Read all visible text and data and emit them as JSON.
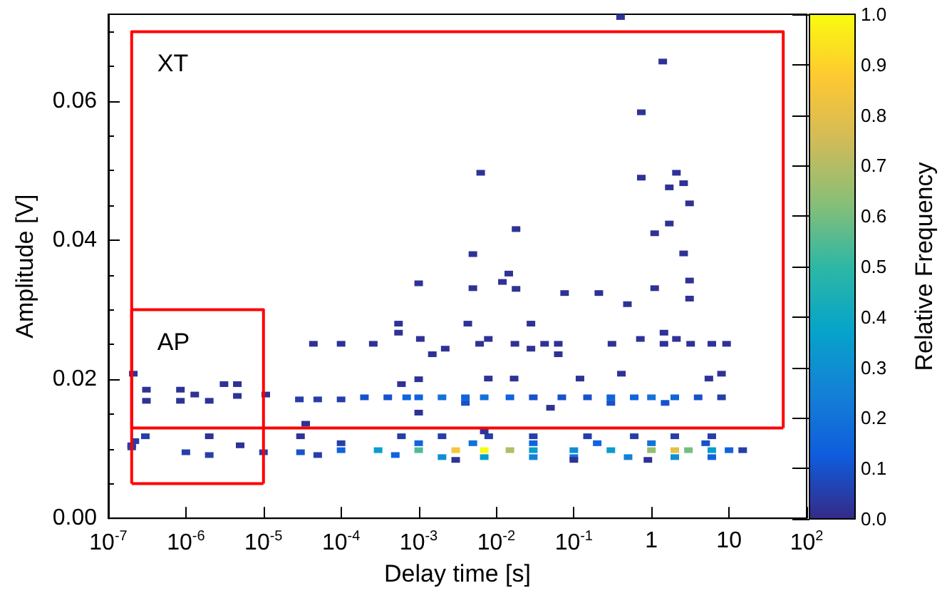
{
  "chart_data": {
    "type": "scatter",
    "xlabel": "Delay time [s]",
    "ylabel": "Amplitude [V]",
    "clabel": "Relative Frequency",
    "log": "x",
    "grid": false,
    "marker": "square",
    "xlim": [
      1e-07,
      100
    ],
    "ylim": [
      0,
      0.0725
    ],
    "xticks": [
      {
        "value": 1e-07,
        "label": "10$^{-7}$"
      },
      {
        "value": 1e-06,
        "label": "10$^{-6}$"
      },
      {
        "value": 1e-05,
        "label": "10$^{-5}$"
      },
      {
        "value": 0.0001,
        "label": "10$^{-4}$"
      },
      {
        "value": 0.001,
        "label": "10$^{-3}$"
      },
      {
        "value": 0.01,
        "label": "10$^{-2}$"
      },
      {
        "value": 0.1,
        "label": "10$^{-1}$"
      },
      1,
      10,
      {
        "value": 100,
        "label": "10$^{2}$"
      }
    ],
    "yticks": [
      {
        "value": 0,
        "label": "0.00"
      },
      {
        "value": 0.02,
        "label": "0.02"
      },
      {
        "value": 0.04,
        "label": "0.04"
      },
      {
        "value": 0.06,
        "label": "0.06"
      }
    ],
    "clim": [
      0,
      1
    ],
    "cticks": [
      {
        "value": 0,
        "label": "0.0"
      },
      {
        "value": 0.1,
        "label": "0.1"
      },
      {
        "value": 0.2,
        "label": "0.2"
      },
      {
        "value": 0.3,
        "label": "0.3"
      },
      {
        "value": 0.4,
        "label": "0.4"
      },
      {
        "value": 0.5,
        "label": "0.5"
      },
      {
        "value": 0.6,
        "label": "0.6"
      },
      {
        "value": 0.7,
        "label": "0.7"
      },
      {
        "value": 0.8,
        "label": "0.8"
      },
      {
        "value": 0.9,
        "label": "0.9"
      },
      {
        "value": 1,
        "label": "1.0"
      }
    ],
    "annotations": [
      "XT",
      "AP"
    ],
    "series": [
      {
        "x": [
          0.4,
          1.4,
          0.74,
          0.0063,
          0.74,
          2.1,
          2.6,
          1.7,
          3.1,
          0.018,
          1.7,
          1.1,
          2.6,
          0.005,
          0.0145,
          0.012,
          3.1,
          0.001,
          0.005,
          0.018,
          0.076,
          0.21,
          1.1,
          3.1,
          0.49,
          0.00055,
          0.0043,
          0.028,
          0.00055,
          0.00105,
          1.45,
          4.4e-05,
          0.0001,
          0.00026,
          0.0015,
          0.0022,
          0.0061,
          0.0079,
          0.0174,
          0.042,
          0.063,
          0.31,
          0.72,
          1.45,
          2.1,
          3.2,
          6,
          9.3,
          0.028,
          0.063,
          0.001,
          0.0006,
          0.41,
          0.017,
          0.0079,
          0.12,
          5.5,
          8,
          2.1e-07,
          3.1e-07,
          3.1e-07,
          8.5e-07,
          8.5e-07,
          1.3e-06,
          2e-06,
          3.1e-06,
          4.6e-06,
          4.6e-06,
          1.07e-05,
          2.9e-05,
          5e-05,
          0.0001,
          0.0002,
          0.0004,
          0.0007,
          0.001,
          0.002,
          0.004,
          0.007,
          0.015,
          0.03,
          0.07,
          0.15,
          0.3,
          0.6,
          1,
          2,
          4,
          8,
          0.001,
          3.5e-05,
          0.004,
          0.3,
          1.5,
          0.05,
          2.2e-07,
          3e-07,
          2e-06,
          3e-05,
          0.0006,
          0.002,
          0.008,
          0.03,
          0.15,
          0.6,
          2,
          6,
          0.007,
          2e-07,
          5e-06,
          0.0001,
          0.001,
          0.005,
          0.03,
          0.2,
          1,
          5,
          2e-06,
          5e-05,
          0.0005,
          0.002,
          0.007,
          0.03,
          0.1,
          0.5,
          2,
          6,
          0.003,
          0.1,
          0.9,
          2e-07,
          1e-06,
          1e-05,
          3e-05,
          0.0001,
          0.0003,
          0.001,
          0.003,
          0.007,
          0.015,
          0.03,
          0.1,
          0.3,
          1,
          2,
          3,
          6,
          10,
          15
        ],
        "values": [
          0.0721,
          0.0657,
          0.0584,
          0.0497,
          0.049,
          0.0497,
          0.0482,
          0.0476,
          0.0453,
          0.0416,
          0.0424,
          0.041,
          0.0381,
          0.038,
          0.0352,
          0.034,
          0.0342,
          0.0338,
          0.0331,
          0.033,
          0.0324,
          0.0324,
          0.0331,
          0.0316,
          0.0308,
          0.028,
          0.028,
          0.028,
          0.0267,
          0.0258,
          0.0267,
          0.0251,
          0.0251,
          0.0251,
          0.0236,
          0.0244,
          0.0251,
          0.0258,
          0.0251,
          0.0251,
          0.0251,
          0.0251,
          0.0258,
          0.0251,
          0.0258,
          0.0251,
          0.0251,
          0.0251,
          0.0244,
          0.0236,
          0.02,
          0.0193,
          0.0208,
          0.0201,
          0.0201,
          0.0201,
          0.0201,
          0.0208,
          0.0208,
          0.0185,
          0.0169,
          0.0185,
          0.0169,
          0.0178,
          0.0169,
          0.0193,
          0.0193,
          0.0176,
          0.0178,
          0.0171,
          0.0171,
          0.0171,
          0.0174,
          0.0174,
          0.0174,
          0.0174,
          0.0174,
          0.0174,
          0.0174,
          0.0174,
          0.0174,
          0.0174,
          0.0174,
          0.0174,
          0.0174,
          0.0174,
          0.0174,
          0.0174,
          0.0174,
          0.0152,
          0.0136,
          0.0166,
          0.0166,
          0.0166,
          0.0159,
          0.0111,
          0.0118,
          0.0118,
          0.0118,
          0.0118,
          0.0118,
          0.0118,
          0.0118,
          0.0118,
          0.0118,
          0.0118,
          0.0118,
          0.0125,
          0.0105,
          0.0105,
          0.0108,
          0.0108,
          0.0108,
          0.0108,
          0.0108,
          0.0108,
          0.0108,
          0.0091,
          0.0091,
          0.0091,
          0.0088,
          0.0088,
          0.0088,
          0.0088,
          0.0088,
          0.0088,
          0.0088,
          0.0084,
          0.0084,
          0.0084,
          0.0102,
          0.0095,
          0.0095,
          0.0095,
          0.0098,
          0.0098,
          0.0098,
          0.0098,
          0.0098,
          0.0098,
          0.0098,
          0.0098,
          0.0098,
          0.0098,
          0.0098,
          0.0098,
          0.0098,
          0.0098,
          0.0098
        ],
        "colors": [
          "#2f3295",
          "#2f3295",
          "#2f3295",
          "#2f3295",
          "#2f3295",
          "#2f3295",
          "#2f3295",
          "#2f3295",
          "#2f3295",
          "#2f3295",
          "#2f3295",
          "#2f3295",
          "#2f3295",
          "#2f3295",
          "#2f3295",
          "#2f3295",
          "#2f3295",
          "#2f3295",
          "#2f3295",
          "#2f3295",
          "#2f3295",
          "#2f3295",
          "#2f3295",
          "#2f3295",
          "#2f3295",
          "#2f3295",
          "#2f3295",
          "#2f3295",
          "#2f3295",
          "#2f3295",
          "#2f3295",
          "#2f3295",
          "#2f3295",
          "#2f3295",
          "#2f3295",
          "#2f3295",
          "#2f3295",
          "#2f3295",
          "#2f3295",
          "#2f3295",
          "#2f3295",
          "#2f3295",
          "#2f3295",
          "#2f3295",
          "#2f3295",
          "#2f3295",
          "#2f3295",
          "#2f3295",
          "#2f3295",
          "#2f3295",
          "#2f3295",
          "#2f3295",
          "#2f3295",
          "#2f3295",
          "#2f3295",
          "#2f3295",
          "#2f3295",
          "#2f3295",
          "#2f3295",
          "#2f3295",
          "#2f3295",
          "#2f3295",
          "#2f3295",
          "#2f3295",
          "#2f3295",
          "#2f3295",
          "#2f3295",
          "#2f3295",
          "#2f3295",
          "#263ea9",
          "#263ea9",
          "#263ea9",
          "#1752cc",
          "#1752cc",
          "#1063dc",
          "#1063dc",
          "#1272d9",
          "#1063dc",
          "#1272d9",
          "#1063dc",
          "#1752cc",
          "#1752cc",
          "#1752cc",
          "#1063dc",
          "#1063dc",
          "#1272d9",
          "#1063dc",
          "#1752cc",
          "#263ea9",
          "#2f3295",
          "#2f3295",
          "#1752cc",
          "#1752cc",
          "#1752cc",
          "#2f3295",
          "#263ea9",
          "#263ea9",
          "#2f3295",
          "#2f3295",
          "#263ea9",
          "#263ea9",
          "#263ea9",
          "#263ea9",
          "#263ea9",
          "#263ea9",
          "#263ea9",
          "#263ea9",
          "#2f3295",
          "#263ea9",
          "#2f3295",
          "#263ea9",
          "#1063dc",
          "#1272d9",
          "#1063dc",
          "#1063dc",
          "#1272d9",
          "#1752cc",
          "#263ea9",
          "#263ea9",
          "#1063dc",
          "#0e8fd1",
          "#099dcc",
          "#1481d6",
          "#1272d9",
          "#1481d6",
          "#0e8fd1",
          "#1063dc",
          "#2f3295",
          "#2f3295",
          "#2f3295",
          "#263ea9",
          "#263ea9",
          "#263ea9",
          "#1752cc",
          "#1063dc",
          "#099dcc",
          "#52ba92",
          "#f5c53a",
          "#f9fb0e",
          "#b3bd65",
          "#099dcc",
          "#0e8fd1",
          "#099dcc",
          "#96be71",
          "#e3c049",
          "#75bd80",
          "#099dcc",
          "#1063dc",
          "#263ea9"
        ]
      },
      {
        "type": "line",
        "color": "#ff0000",
        "marker": "none",
        "x": [
          2e-07,
          2e-07,
          50,
          50
        ],
        "values": [
          0.013,
          0.07,
          0.07,
          0.013
        ]
      },
      {
        "type": "line",
        "color": "#ff0000",
        "marker": "none",
        "x": [
          2e-07,
          2e-07,
          1e-05,
          1e-05
        ],
        "values": [
          0.005,
          0.03,
          0.03,
          0.005
        ]
      },
      {
        "type": "line",
        "color": "#ff0000",
        "marker": "none",
        "x": [
          2e-07,
          50
        ],
        "values": [
          0.013,
          0.013
        ]
      },
      {
        "type": "line",
        "color": "#ff0000",
        "marker": "none",
        "x": [
          2e-07,
          1e-05
        ],
        "values": [
          0.005,
          0.005
        ]
      }
    ]
  }
}
